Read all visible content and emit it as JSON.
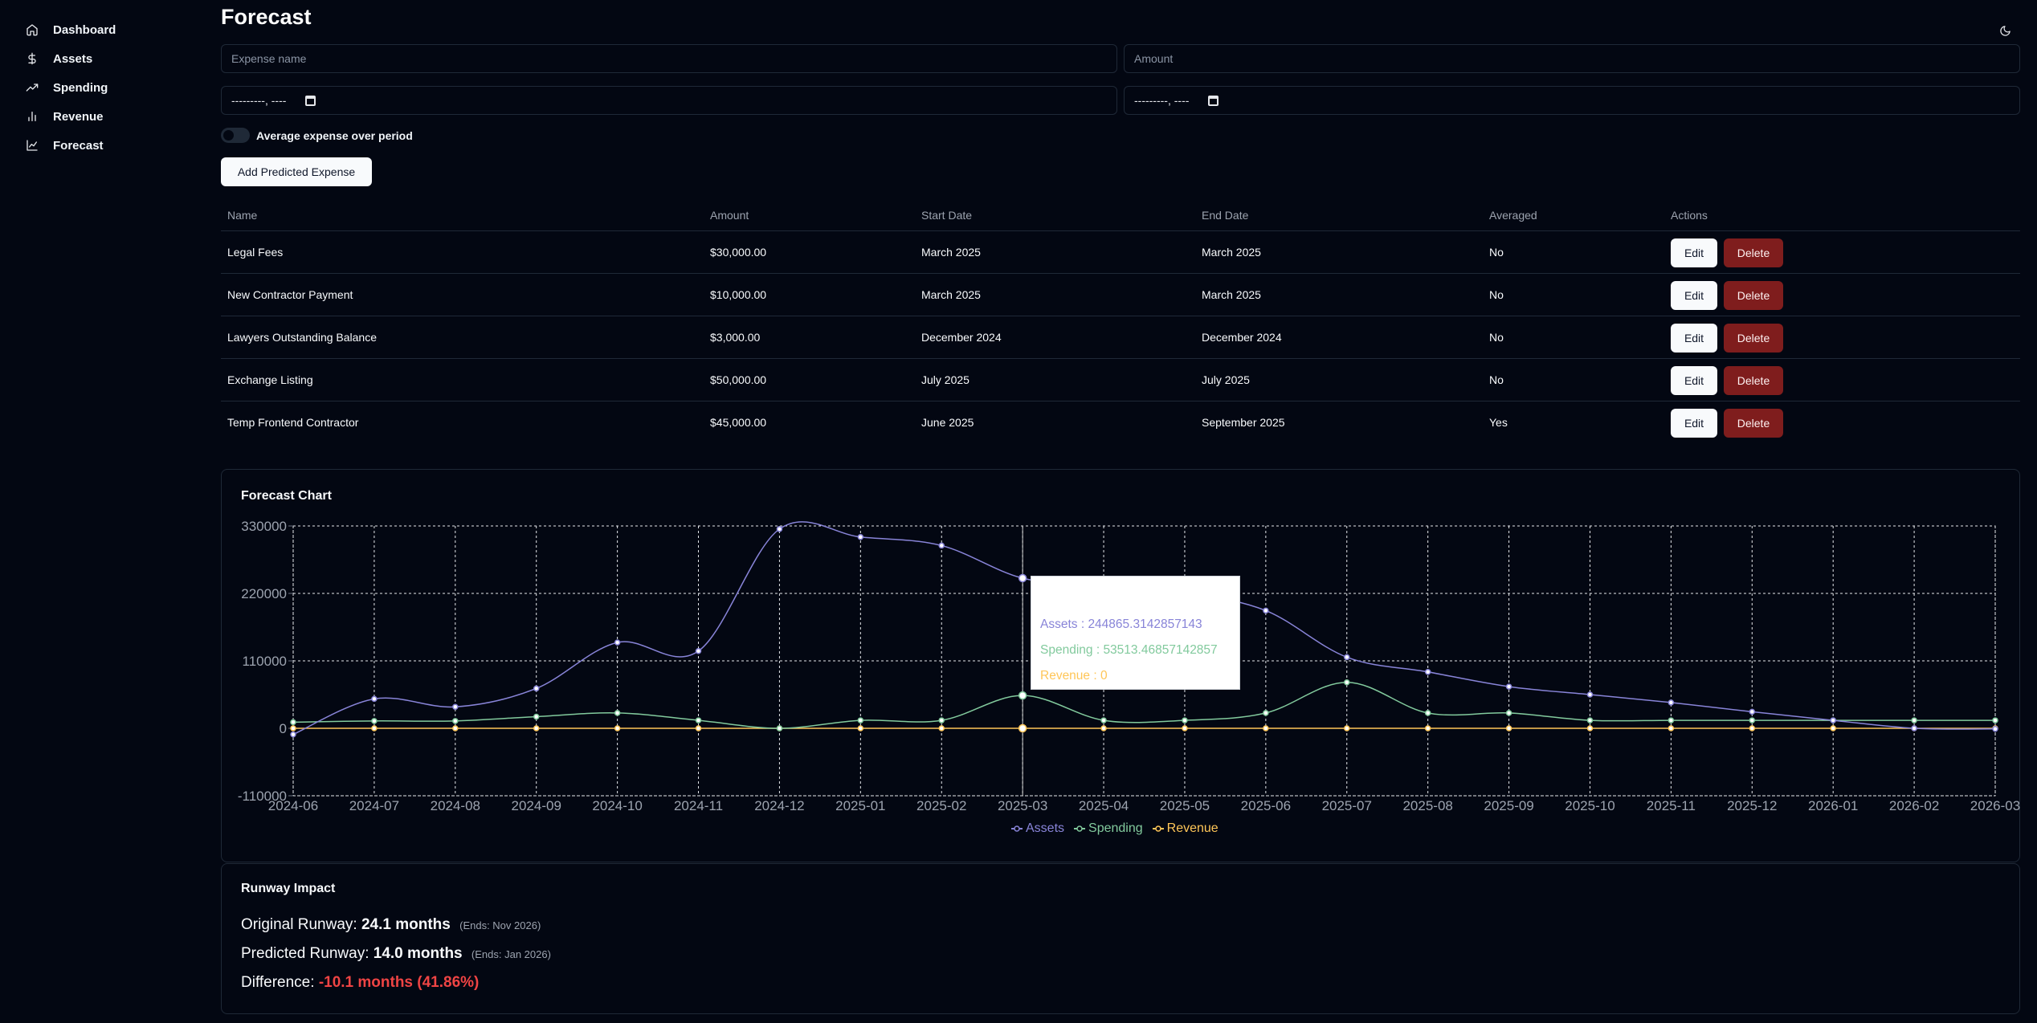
{
  "sidebar": {
    "items": [
      {
        "label": "Dashboard",
        "icon": "home-icon"
      },
      {
        "label": "Assets",
        "icon": "dollar-icon"
      },
      {
        "label": "Spending",
        "icon": "trending-up-icon"
      },
      {
        "label": "Revenue",
        "icon": "bar-chart-icon"
      },
      {
        "label": "Forecast",
        "icon": "line-chart-icon"
      }
    ]
  },
  "header": {
    "title": "Forecast",
    "theme_icon": "moon-icon"
  },
  "form": {
    "expense_name_placeholder": "Expense name",
    "amount_placeholder": "Amount",
    "start_date_value": "---------, ----",
    "end_date_value": "---------, ----",
    "average_toggle_label": "Average expense over period",
    "average_toggle_on": false,
    "add_button": "Add Predicted Expense"
  },
  "table": {
    "headers": [
      "Name",
      "Amount",
      "Start Date",
      "End Date",
      "Averaged",
      "Actions"
    ],
    "edit_label": "Edit",
    "delete_label": "Delete",
    "rows": [
      {
        "name": "Legal Fees",
        "amount": "$30,000.00",
        "start": "March 2025",
        "end": "March 2025",
        "averaged": "No"
      },
      {
        "name": "New Contractor Payment",
        "amount": "$10,000.00",
        "start": "March 2025",
        "end": "March 2025",
        "averaged": "No"
      },
      {
        "name": "Lawyers Outstanding Balance",
        "amount": "$3,000.00",
        "start": "December 2024",
        "end": "December 2024",
        "averaged": "No"
      },
      {
        "name": "Exchange Listing",
        "amount": "$50,000.00",
        "start": "July 2025",
        "end": "July 2025",
        "averaged": "No"
      },
      {
        "name": "Temp Frontend Contractor",
        "amount": "$45,000.00",
        "start": "June 2025",
        "end": "September 2025",
        "averaged": "Yes"
      }
    ]
  },
  "chart_card": {
    "title": "Forecast Chart"
  },
  "chart_data": {
    "type": "line",
    "title": "",
    "x": [
      "2024-06",
      "2024-07",
      "2024-08",
      "2024-09",
      "2024-10",
      "2024-11",
      "2024-12",
      "2025-01",
      "2025-02",
      "2025-03",
      "2025-04",
      "2025-05",
      "2025-06",
      "2025-07",
      "2025-08",
      "2025-09",
      "2025-10",
      "2025-11",
      "2025-12",
      "2026-01",
      "2026-02",
      "2026-03"
    ],
    "series": [
      {
        "name": "Assets",
        "color": "#8884d8",
        "values": [
          -10000,
          48000,
          35000,
          65000,
          140000,
          126000,
          325000,
          312000,
          298000,
          244865.3142857143,
          232000,
          221000,
          192000,
          116000,
          92000,
          68000,
          55000,
          42000,
          27000,
          13000,
          0,
          -1000
        ]
      },
      {
        "name": "Spending",
        "color": "#82ca9d",
        "values": [
          10000,
          12000,
          12000,
          19000,
          25000,
          13000,
          0,
          13000,
          13000,
          53513.46857142857,
          13000,
          13000,
          25000,
          75000,
          25000,
          25000,
          13000,
          13000,
          13000,
          13000,
          13000,
          13000
        ]
      },
      {
        "name": "Revenue",
        "color": "#ffc658",
        "values": [
          0,
          0,
          0,
          0,
          0,
          0,
          0,
          0,
          0,
          0,
          0,
          0,
          0,
          0,
          0,
          0,
          0,
          0,
          0,
          0,
          0,
          0
        ]
      }
    ],
    "yticks": [
      330000,
      220000,
      110000,
      0,
      -110000
    ],
    "ylim": [
      -110000,
      330000
    ],
    "grid": true,
    "legend": "bottom-center",
    "tooltip": {
      "label": "2025-03",
      "lines": [
        {
          "name": "Assets",
          "value": "244865.3142857143",
          "color": "#8884d8"
        },
        {
          "name": "Spending",
          "value": "53513.46857142857",
          "color": "#82ca9d"
        },
        {
          "name": "Revenue",
          "value": "0",
          "color": "#ffc658"
        }
      ]
    }
  },
  "runway": {
    "title": "Runway Impact",
    "original_label": "Original Runway:",
    "original_value": "24.1 months",
    "original_ends": "(Ends: Nov 2026)",
    "predicted_label": "Predicted Runway:",
    "predicted_value": "14.0 months",
    "predicted_ends": "(Ends: Jan 2026)",
    "difference_label": "Difference:",
    "difference_value": "-10.1 months (41.86%)"
  }
}
